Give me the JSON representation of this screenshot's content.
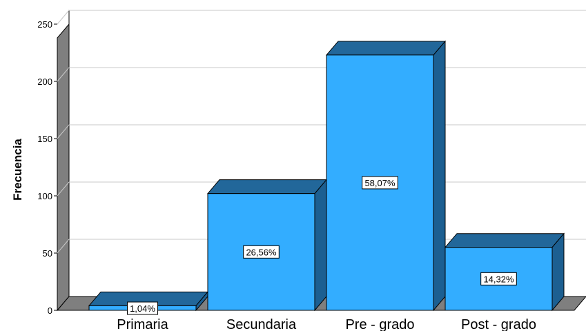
{
  "chart_data": {
    "type": "bar",
    "title": "",
    "xlabel": "",
    "ylabel": "Frecuencia",
    "ylim": [
      0,
      250
    ],
    "yticks": [
      0,
      50,
      100,
      150,
      200,
      250
    ],
    "grid": true,
    "categories": [
      "Primaria",
      "Secundaria",
      "Pre - grado",
      "Post - grado"
    ],
    "values": [
      4,
      102,
      223,
      55
    ],
    "data_labels": [
      "1,04%",
      "26,56%",
      "58,07%",
      "14,32%"
    ],
    "style": "3d",
    "colors": {
      "bar_front": "#33adff",
      "bar_top": "#22679a",
      "bar_side": "#1c5f91",
      "wall": "#ffffff",
      "wall_side": "#7f7f7f",
      "floor": "#7f7f7f",
      "gridline": "#c8c8c8"
    }
  }
}
